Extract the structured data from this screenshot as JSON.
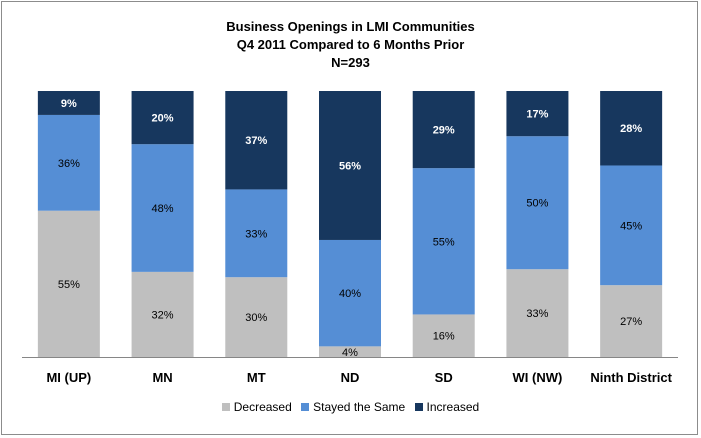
{
  "chart_data": {
    "type": "bar",
    "stacked": true,
    "title_lines": [
      "Business Openings in LMI Communities",
      "Q4 2011 Compared to 6 Months Prior",
      "N=293"
    ],
    "categories": [
      "MI (UP)",
      "MN",
      "MT",
      "ND",
      "SD",
      "WI (NW)",
      "Ninth District"
    ],
    "series": [
      {
        "name": "Decreased",
        "color": "#bfbfbf",
        "label_color": "#000000",
        "values": [
          55,
          32,
          30,
          4,
          16,
          33,
          27
        ],
        "labels": [
          "55%",
          "32%",
          "30%",
          "4%",
          "16%",
          "33%",
          "27%"
        ]
      },
      {
        "name": "Stayed the Same",
        "color": "#558ed5",
        "label_color": "#000000",
        "values": [
          36,
          48,
          33,
          40,
          55,
          50,
          45
        ],
        "labels": [
          "36%",
          "48%",
          "33%",
          "40%",
          "55%",
          "50%",
          "45%"
        ]
      },
      {
        "name": "Increased",
        "color": "#17375e",
        "label_color": "#ffffff",
        "values": [
          9,
          20,
          37,
          56,
          29,
          17,
          28
        ],
        "labels": [
          "9%",
          "20%",
          "37%",
          "56%",
          "29%",
          "17%",
          "28%"
        ]
      }
    ],
    "ylim": [
      0,
      100
    ],
    "grid": false,
    "legend_position": "bottom"
  }
}
